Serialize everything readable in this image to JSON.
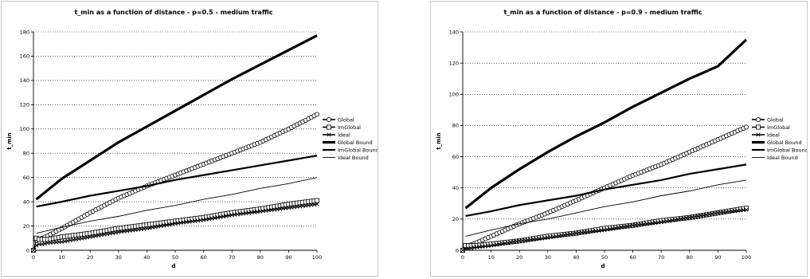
{
  "chart_data": [
    {
      "type": "line",
      "title": "t_min as a function of distance - p=0.5 - medium traffic",
      "xlabel": "d",
      "ylabel": "t_min",
      "xlim": [
        0,
        100
      ],
      "ylim": [
        0,
        180
      ],
      "xticks": [
        0,
        10,
        20,
        30,
        40,
        50,
        60,
        70,
        80,
        90,
        100
      ],
      "yticks": [
        0,
        20,
        40,
        60,
        80,
        100,
        120,
        140,
        160,
        180
      ],
      "grid": "horizontal-dotted",
      "legend": "right",
      "series": [
        {
          "name": "Global",
          "marker": "circle",
          "x": [
            0,
            1,
            2,
            3,
            5,
            10,
            20,
            30,
            40,
            50,
            60,
            70,
            80,
            90,
            100
          ],
          "y": [
            0,
            8,
            9,
            10,
            12,
            18,
            31,
            43,
            53,
            62,
            71,
            80,
            89,
            100,
            112
          ]
        },
        {
          "name": "ImGlobal",
          "marker": "square",
          "x": [
            0,
            1,
            2,
            3,
            5,
            10,
            20,
            30,
            40,
            50,
            60,
            70,
            80,
            90,
            100
          ],
          "y": [
            0,
            10,
            9,
            9,
            9,
            11,
            14,
            18,
            21,
            24,
            27,
            31,
            34,
            38,
            41
          ]
        },
        {
          "name": "Ideal",
          "marker": "x",
          "x": [
            0,
            1,
            2,
            3,
            5,
            10,
            20,
            30,
            40,
            50,
            60,
            70,
            80,
            90,
            100
          ],
          "y": [
            0,
            4,
            5,
            5,
            6,
            7,
            11,
            15,
            18,
            22,
            25,
            29,
            32,
            35,
            38
          ]
        },
        {
          "name": "Global Bound",
          "style": "thick",
          "x": [
            1,
            10,
            20,
            30,
            40,
            50,
            60,
            70,
            80,
            90,
            100
          ],
          "y": [
            42,
            59,
            74,
            89,
            102,
            115,
            128,
            141,
            153,
            165,
            177
          ]
        },
        {
          "name": "ImGlobal Bound",
          "style": "medium",
          "x": [
            1,
            10,
            20,
            30,
            40,
            50,
            60,
            70,
            80,
            90,
            100
          ],
          "y": [
            36,
            40,
            45,
            49,
            53,
            58,
            62,
            66,
            70,
            74,
            78
          ]
        },
        {
          "name": "Ideal Bound",
          "style": "thin",
          "x": [
            1,
            10,
            20,
            30,
            40,
            50,
            60,
            70,
            80,
            90,
            100
          ],
          "y": [
            14,
            19,
            24,
            28,
            33,
            37,
            42,
            46,
            51,
            55,
            60
          ]
        }
      ]
    },
    {
      "type": "line",
      "title": "t_min as a function of distance - p=0.9 - medium traffic",
      "xlabel": "d",
      "ylabel": "t_min",
      "xlim": [
        0,
        100
      ],
      "ylim": [
        0,
        140
      ],
      "xticks": [
        0,
        10,
        20,
        30,
        40,
        50,
        60,
        70,
        80,
        90,
        100
      ],
      "yticks": [
        0,
        20,
        40,
        60,
        80,
        100,
        120,
        140
      ],
      "grid": "horizontal-dotted",
      "legend": "right",
      "series": [
        {
          "name": "Global",
          "marker": "circle",
          "x": [
            0,
            1,
            2,
            5,
            10,
            20,
            30,
            40,
            50,
            60,
            70,
            80,
            90,
            100
          ],
          "y": [
            0,
            2,
            3,
            5,
            9,
            17,
            24,
            32,
            40,
            48,
            55,
            63,
            71,
            79
          ]
        },
        {
          "name": "ImGlobal",
          "marker": "square",
          "x": [
            0,
            1,
            2,
            5,
            10,
            20,
            30,
            40,
            50,
            60,
            70,
            80,
            90,
            100
          ],
          "y": [
            0,
            3,
            3,
            3,
            4,
            6,
            9,
            11,
            14,
            16,
            19,
            21,
            24,
            27
          ]
        },
        {
          "name": "Ideal",
          "marker": "x",
          "x": [
            0,
            1,
            2,
            5,
            10,
            20,
            30,
            40,
            50,
            60,
            70,
            80,
            90,
            100
          ],
          "y": [
            0,
            1,
            1,
            2,
            3,
            6,
            8,
            11,
            13,
            16,
            18,
            21,
            24,
            26
          ]
        },
        {
          "name": "Global Bound",
          "style": "thick",
          "x": [
            1,
            10,
            20,
            30,
            40,
            50,
            60,
            70,
            80,
            90,
            100
          ],
          "y": [
            27,
            40,
            52,
            63,
            73,
            82,
            92,
            101,
            110,
            118,
            135
          ]
        },
        {
          "name": "ImGlobal Bound",
          "style": "medium",
          "x": [
            1,
            10,
            20,
            30,
            40,
            50,
            60,
            70,
            80,
            90,
            100
          ],
          "y": [
            22,
            25,
            29,
            32,
            35,
            39,
            42,
            45,
            49,
            52,
            55
          ]
        },
        {
          "name": "Ideal Bound",
          "style": "thin",
          "x": [
            1,
            10,
            20,
            30,
            40,
            50,
            60,
            70,
            80,
            90,
            100
          ],
          "y": [
            9,
            13,
            17,
            20,
            24,
            28,
            31,
            35,
            38,
            42,
            45
          ]
        }
      ]
    }
  ]
}
